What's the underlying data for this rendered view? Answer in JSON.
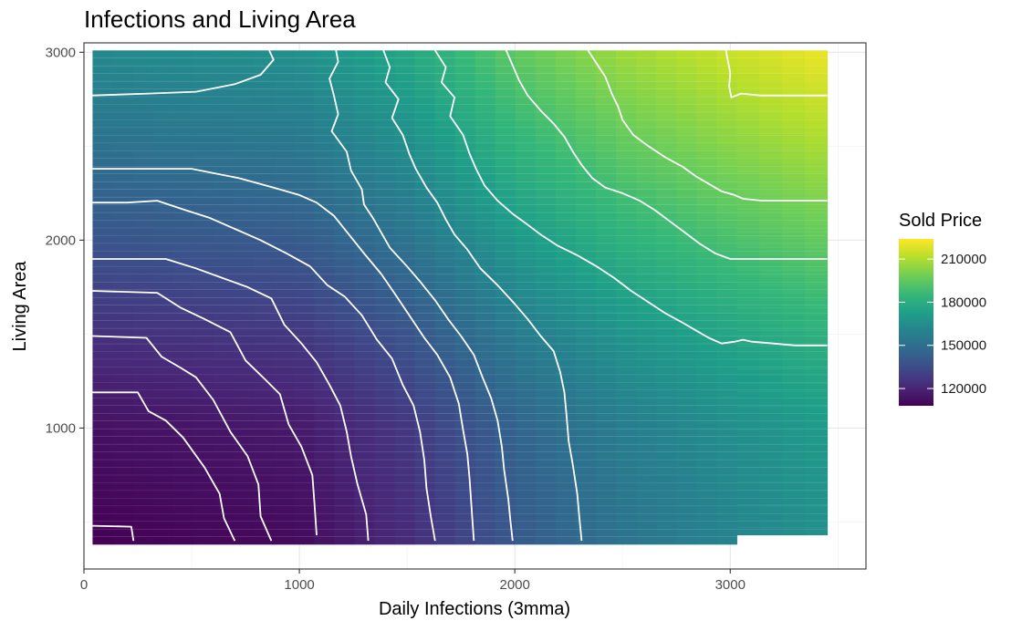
{
  "chart_data": {
    "type": "heatmap",
    "title": "Infections and Living Area",
    "xlabel": "Daily Infections (3mma)",
    "ylabel": "Living Area",
    "xlim": [
      0,
      3630
    ],
    "ylim": [
      250,
      3050
    ],
    "x_ticks": [
      0,
      1000,
      2000,
      3000
    ],
    "y_ticks": [
      1000,
      2000,
      3000
    ],
    "grid": true,
    "theme": "bw",
    "palette": "viridis",
    "contour_color": "#ffffff",
    "legend": {
      "title": "Sold Price",
      "position": "right",
      "breaks": [
        120000,
        150000,
        180000,
        210000
      ],
      "labels": [
        "120000",
        "150000",
        "180000",
        "210000"
      ],
      "range": [
        108000,
        224000
      ]
    },
    "tile_regions": [
      {
        "x_range": [
          40,
          3030
        ],
        "y_range": [
          380,
          3010
        ]
      },
      {
        "x_range": [
          3030,
          3450
        ],
        "y_range": [
          430,
          3010
        ]
      }
    ],
    "surface_model": {
      "base": 108000,
      "infection_effect": [
        [
          0,
          0
        ],
        [
          1000,
          3000
        ],
        [
          1500,
          14000
        ],
        [
          2000,
          32000
        ],
        [
          2500,
          44000
        ],
        [
          3000,
          52000
        ],
        [
          3450,
          58000
        ]
      ],
      "area_effect": [
        [
          380,
          0
        ],
        [
          1000,
          5000
        ],
        [
          1500,
          16000
        ],
        [
          2000,
          30000
        ],
        [
          2500,
          43000
        ],
        [
          3010,
          55000
        ]
      ]
    },
    "contours": [
      {
        "level": 120000,
        "points": [
          [
            40,
            480
          ],
          [
            220,
            475
          ],
          [
            230,
            400
          ]
        ]
      },
      {
        "level": 125000,
        "points": [
          [
            40,
            1190
          ],
          [
            250,
            1190
          ],
          [
            300,
            1090
          ],
          [
            380,
            1040
          ],
          [
            460,
            950
          ],
          [
            560,
            790
          ],
          [
            630,
            650
          ],
          [
            650,
            520
          ],
          [
            700,
            400
          ]
        ]
      },
      {
        "level": 135000,
        "points": [
          [
            40,
            1490
          ],
          [
            290,
            1480
          ],
          [
            360,
            1380
          ],
          [
            450,
            1320
          ],
          [
            520,
            1270
          ],
          [
            600,
            1150
          ],
          [
            680,
            980
          ],
          [
            760,
            850
          ],
          [
            810,
            700
          ],
          [
            820,
            530
          ],
          [
            870,
            400
          ]
        ]
      },
      {
        "level": 145000,
        "points": [
          [
            40,
            1730
          ],
          [
            340,
            1720
          ],
          [
            450,
            1640
          ],
          [
            560,
            1580
          ],
          [
            680,
            1510
          ],
          [
            750,
            1360
          ],
          [
            840,
            1260
          ],
          [
            910,
            1180
          ],
          [
            950,
            1020
          ],
          [
            1010,
            900
          ],
          [
            1060,
            750
          ],
          [
            1070,
            600
          ],
          [
            1080,
            430
          ]
        ]
      },
      {
        "level": 155000,
        "points": [
          [
            40,
            1900
          ],
          [
            380,
            1900
          ],
          [
            520,
            1850
          ],
          [
            640,
            1800
          ],
          [
            760,
            1750
          ],
          [
            870,
            1690
          ],
          [
            930,
            1550
          ],
          [
            1010,
            1450
          ],
          [
            1080,
            1350
          ],
          [
            1140,
            1230
          ],
          [
            1190,
            1120
          ],
          [
            1220,
            980
          ],
          [
            1240,
            850
          ],
          [
            1270,
            700
          ],
          [
            1310,
            540
          ],
          [
            1320,
            400
          ]
        ]
      },
      {
        "level": 163000,
        "points": [
          [
            40,
            2200
          ],
          [
            200,
            2200
          ],
          [
            340,
            2210
          ],
          [
            470,
            2160
          ],
          [
            580,
            2120
          ],
          [
            700,
            2060
          ],
          [
            820,
            2000
          ],
          [
            940,
            1930
          ],
          [
            1050,
            1860
          ],
          [
            1130,
            1760
          ],
          [
            1210,
            1700
          ],
          [
            1290,
            1600
          ],
          [
            1360,
            1470
          ],
          [
            1430,
            1370
          ],
          [
            1480,
            1230
          ],
          [
            1530,
            1120
          ],
          [
            1560,
            980
          ],
          [
            1580,
            830
          ],
          [
            1590,
            680
          ],
          [
            1610,
            530
          ],
          [
            1630,
            400
          ]
        ]
      },
      {
        "level": 170000,
        "points": [
          [
            40,
            2380
          ],
          [
            500,
            2380
          ],
          [
            720,
            2330
          ],
          [
            880,
            2280
          ],
          [
            1000,
            2240
          ],
          [
            1080,
            2200
          ],
          [
            1160,
            2130
          ],
          [
            1230,
            2030
          ],
          [
            1300,
            1930
          ],
          [
            1380,
            1820
          ],
          [
            1440,
            1720
          ],
          [
            1510,
            1600
          ],
          [
            1580,
            1480
          ],
          [
            1640,
            1390
          ],
          [
            1700,
            1270
          ],
          [
            1740,
            1130
          ],
          [
            1760,
            990
          ],
          [
            1780,
            860
          ],
          [
            1790,
            730
          ],
          [
            1800,
            560
          ],
          [
            1810,
            400
          ]
        ]
      },
      {
        "level": 178000,
        "points": [
          [
            40,
            2770
          ],
          [
            300,
            2780
          ],
          [
            520,
            2790
          ],
          [
            700,
            2830
          ],
          [
            820,
            2880
          ],
          [
            880,
            2960
          ],
          [
            860,
            3010
          ]
        ]
      },
      {
        "level": 178000,
        "points": [
          [
            1170,
            3010
          ],
          [
            1180,
            2950
          ],
          [
            1140,
            2860
          ],
          [
            1160,
            2770
          ],
          [
            1180,
            2670
          ],
          [
            1150,
            2580
          ],
          [
            1220,
            2470
          ],
          [
            1240,
            2370
          ],
          [
            1290,
            2270
          ],
          [
            1300,
            2190
          ],
          [
            1340,
            2120
          ],
          [
            1380,
            2040
          ],
          [
            1420,
            1960
          ],
          [
            1500,
            1860
          ],
          [
            1560,
            1780
          ],
          [
            1630,
            1680
          ],
          [
            1690,
            1580
          ],
          [
            1750,
            1490
          ],
          [
            1810,
            1390
          ],
          [
            1850,
            1270
          ],
          [
            1890,
            1160
          ],
          [
            1920,
            1040
          ],
          [
            1940,
            900
          ],
          [
            1950,
            780
          ],
          [
            1970,
            620
          ],
          [
            1980,
            500
          ],
          [
            1990,
            400
          ]
        ]
      },
      {
        "level": 186000,
        "points": [
          [
            1390,
            3010
          ],
          [
            1420,
            2920
          ],
          [
            1400,
            2840
          ],
          [
            1460,
            2750
          ],
          [
            1430,
            2650
          ],
          [
            1480,
            2560
          ],
          [
            1510,
            2460
          ],
          [
            1540,
            2380
          ],
          [
            1590,
            2280
          ],
          [
            1640,
            2200
          ],
          [
            1680,
            2110
          ],
          [
            1720,
            2030
          ],
          [
            1780,
            1950
          ],
          [
            1840,
            1850
          ],
          [
            1920,
            1760
          ],
          [
            2000,
            1660
          ],
          [
            2060,
            1580
          ],
          [
            2120,
            1490
          ],
          [
            2180,
            1410
          ],
          [
            2210,
            1300
          ],
          [
            2230,
            1190
          ],
          [
            2240,
            1070
          ],
          [
            2250,
            930
          ],
          [
            2270,
            800
          ],
          [
            2290,
            650
          ],
          [
            2300,
            520
          ],
          [
            2310,
            400
          ]
        ]
      },
      {
        "level": 194000,
        "points": [
          [
            1630,
            3010
          ],
          [
            1680,
            2920
          ],
          [
            1660,
            2840
          ],
          [
            1720,
            2760
          ],
          [
            1700,
            2660
          ],
          [
            1760,
            2560
          ],
          [
            1790,
            2460
          ],
          [
            1820,
            2380
          ],
          [
            1860,
            2290
          ],
          [
            1920,
            2210
          ],
          [
            1990,
            2140
          ],
          [
            2050,
            2090
          ],
          [
            2120,
            2030
          ],
          [
            2200,
            1970
          ],
          [
            2290,
            1920
          ],
          [
            2380,
            1860
          ],
          [
            2460,
            1800
          ],
          [
            2540,
            1730
          ],
          [
            2620,
            1670
          ],
          [
            2700,
            1610
          ],
          [
            2780,
            1560
          ],
          [
            2840,
            1520
          ],
          [
            2900,
            1480
          ],
          [
            2960,
            1450
          ],
          [
            3020,
            1460
          ],
          [
            3060,
            1470
          ],
          [
            3100,
            1460
          ],
          [
            3200,
            1450
          ],
          [
            3300,
            1440
          ],
          [
            3450,
            1440
          ]
        ]
      },
      {
        "level": 202000,
        "points": [
          [
            1960,
            3010
          ],
          [
            1990,
            2930
          ],
          [
            2020,
            2850
          ],
          [
            2060,
            2770
          ],
          [
            2120,
            2690
          ],
          [
            2180,
            2620
          ],
          [
            2230,
            2550
          ],
          [
            2270,
            2470
          ],
          [
            2310,
            2400
          ],
          [
            2360,
            2330
          ],
          [
            2420,
            2280
          ],
          [
            2500,
            2250
          ],
          [
            2580,
            2210
          ],
          [
            2650,
            2160
          ],
          [
            2720,
            2100
          ],
          [
            2790,
            2040
          ],
          [
            2860,
            1980
          ],
          [
            2930,
            1930
          ],
          [
            3000,
            1900
          ],
          [
            3060,
            1900
          ],
          [
            3150,
            1900
          ],
          [
            3300,
            1900
          ],
          [
            3450,
            1900
          ]
        ]
      },
      {
        "level": 210000,
        "points": [
          [
            2340,
            3010
          ],
          [
            2380,
            2940
          ],
          [
            2420,
            2870
          ],
          [
            2450,
            2780
          ],
          [
            2480,
            2710
          ],
          [
            2500,
            2640
          ],
          [
            2550,
            2560
          ],
          [
            2620,
            2500
          ],
          [
            2700,
            2440
          ],
          [
            2780,
            2390
          ],
          [
            2840,
            2340
          ],
          [
            2900,
            2300
          ],
          [
            2960,
            2260
          ],
          [
            3020,
            2240
          ],
          [
            3060,
            2220
          ],
          [
            3150,
            2210
          ],
          [
            3300,
            2210
          ],
          [
            3450,
            2210
          ]
        ]
      },
      {
        "level": 216000,
        "points": [
          [
            2980,
            3010
          ],
          [
            2990,
            2950
          ],
          [
            3000,
            2890
          ],
          [
            2995,
            2820
          ],
          [
            3005,
            2760
          ],
          [
            3050,
            2780
          ],
          [
            3140,
            2770
          ],
          [
            3300,
            2770
          ],
          [
            3450,
            2770
          ]
        ]
      }
    ]
  }
}
